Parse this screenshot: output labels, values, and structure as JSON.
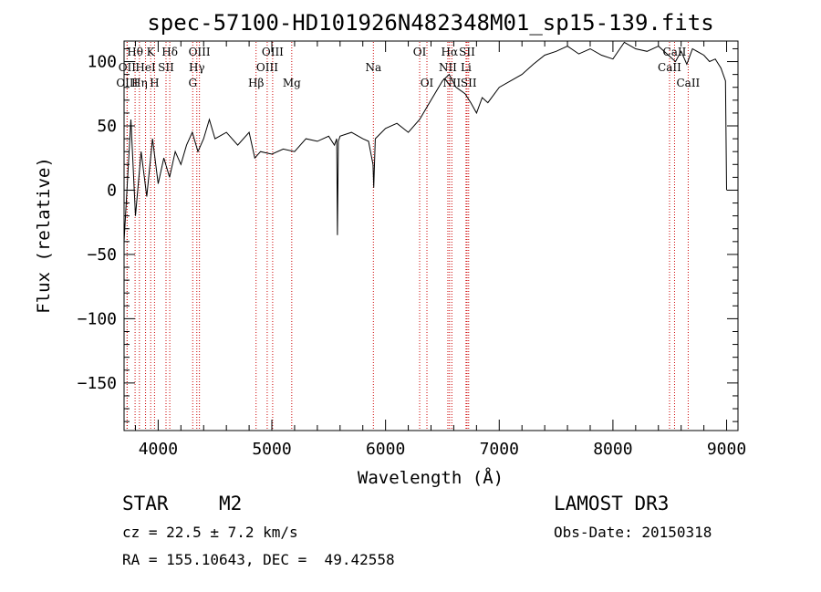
{
  "chart_data": {
    "type": "line",
    "title": "spec-57100-HD101926N482348M01_sp15-139.fits",
    "xlabel": "Wavelength (Å)",
    "ylabel": "Flux (relative)",
    "xlim": [
      3700,
      9100
    ],
    "ylim": [
      -187,
      116
    ],
    "xticks": [
      4000,
      5000,
      6000,
      7000,
      8000,
      9000
    ],
    "yticks": [
      -150,
      -100,
      -50,
      0,
      50,
      100
    ],
    "xtick_labels": [
      "4000",
      "5000",
      "6000",
      "7000",
      "8000",
      "9000"
    ],
    "ytick_labels": [
      "−150",
      "−100",
      "−50",
      "0",
      "50",
      "100"
    ],
    "series": [
      {
        "name": "spectrum",
        "x": [
          3700,
          3760,
          3800,
          3850,
          3900,
          3950,
          4000,
          4050,
          4100,
          4150,
          4200,
          4250,
          4300,
          4350,
          4400,
          4450,
          4500,
          4600,
          4700,
          4800,
          4850,
          4900,
          5000,
          5100,
          5200,
          5300,
          5400,
          5500,
          5550,
          5570,
          5577,
          5585,
          5600,
          5700,
          5800,
          5850,
          5890,
          5896,
          5910,
          6000,
          6100,
          6200,
          6300,
          6400,
          6500,
          6560,
          6620,
          6700,
          6750,
          6800,
          6850,
          6900,
          7000,
          7100,
          7200,
          7300,
          7400,
          7500,
          7600,
          7700,
          7800,
          7900,
          8000,
          8100,
          8200,
          8300,
          8400,
          8500,
          8550,
          8600,
          8650,
          8700,
          8800,
          8850,
          8900,
          8950,
          8990,
          9000
        ],
        "y": [
          -40,
          55,
          -20,
          30,
          -5,
          40,
          5,
          25,
          10,
          30,
          20,
          35,
          45,
          30,
          40,
          55,
          40,
          45,
          35,
          45,
          25,
          30,
          28,
          32,
          30,
          40,
          38,
          42,
          35,
          40,
          -35,
          38,
          42,
          45,
          40,
          38,
          20,
          2,
          40,
          48,
          52,
          45,
          55,
          70,
          85,
          90,
          80,
          75,
          68,
          60,
          72,
          68,
          80,
          85,
          90,
          98,
          105,
          108,
          112,
          106,
          110,
          105,
          102,
          115,
          110,
          108,
          112,
          104,
          100,
          108,
          98,
          110,
          105,
          100,
          102,
          95,
          85,
          0
        ]
      }
    ],
    "spectral_lines": [
      {
        "label": "Hθ",
        "wavelength": 3797,
        "row": 0
      },
      {
        "label": "K",
        "wavelength": 3934,
        "row": 0
      },
      {
        "label": "Hδ",
        "wavelength": 4102,
        "row": 0
      },
      {
        "label": "OIII",
        "wavelength": 4363,
        "row": 0
      },
      {
        "label": "OIII",
        "wavelength": 5007,
        "row": 0
      },
      {
        "label": "OI",
        "wavelength": 6300,
        "row": 0
      },
      {
        "label": "Hα",
        "wavelength": 6563,
        "row": 0
      },
      {
        "label": "SII",
        "wavelength": 6717,
        "row": 0
      },
      {
        "label": "CaII",
        "wavelength": 8542,
        "row": 0
      },
      {
        "label": "OII",
        "wavelength": 3727,
        "row": 1
      },
      {
        "label": "HeI",
        "wavelength": 3889,
        "row": 1
      },
      {
        "label": "SII",
        "wavelength": 4069,
        "row": 1
      },
      {
        "label": "Hγ",
        "wavelength": 4340,
        "row": 1
      },
      {
        "label": "OIII",
        "wavelength": 4959,
        "row": 1
      },
      {
        "label": "Na",
        "wavelength": 5893,
        "row": 1
      },
      {
        "label": "NII",
        "wavelength": 6548,
        "row": 1
      },
      {
        "label": "Li",
        "wavelength": 6708,
        "row": 1
      },
      {
        "label": "CaII",
        "wavelength": 8498,
        "row": 1
      },
      {
        "label": "OIII",
        "wavelength": 3727,
        "row": 2
      },
      {
        "label": "Hη",
        "wavelength": 3835,
        "row": 2
      },
      {
        "label": "H",
        "wavelength": 3968,
        "row": 2
      },
      {
        "label": "G",
        "wavelength": 4304,
        "row": 2
      },
      {
        "label": "Hβ",
        "wavelength": 4861,
        "row": 2
      },
      {
        "label": "Mg",
        "wavelength": 5175,
        "row": 2
      },
      {
        "label": "OI",
        "wavelength": 6364,
        "row": 2
      },
      {
        "label": "NII",
        "wavelength": 6583,
        "row": 2
      },
      {
        "label": "SII",
        "wavelength": 6731,
        "row": 2
      },
      {
        "label": "CaII",
        "wavelength": 8662,
        "row": 2
      }
    ]
  },
  "info": {
    "class": "STAR",
    "subclass": "M2",
    "survey": "LAMOST DR3",
    "cz": "cz = 22.5 ± 7.2 km/s",
    "obs_date": "Obs-Date: 20150318",
    "coords": "RA = 155.10643, DEC =  49.42558"
  },
  "colors": {
    "spectrum": "#000000",
    "line_markers": "#cc0000",
    "axes": "#000000"
  }
}
